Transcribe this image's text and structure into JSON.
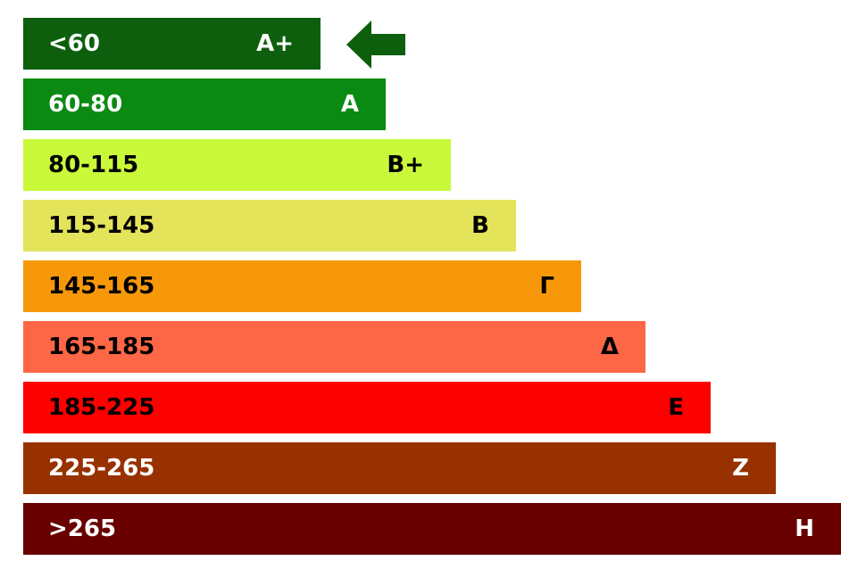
{
  "chart_data": {
    "type": "bar",
    "title": "",
    "xlabel": "",
    "ylabel": "",
    "categories": [
      "<60",
      "60-80",
      "80-115",
      "115-145",
      "145-165",
      "165-185",
      "185-225",
      "225-265",
      ">265"
    ],
    "classes": [
      "A+",
      "A",
      "B+",
      "B",
      "Γ",
      "Δ",
      "E",
      "Z",
      "H"
    ],
    "values": [
      1,
      2,
      3,
      4,
      5,
      6,
      7,
      8,
      9
    ],
    "colors": [
      "#0d5f0d",
      "#0a8a12",
      "#c9f93a",
      "#e3e45a",
      "#f7980a",
      "#fd6746",
      "#fd0000",
      "#983100",
      "#680000"
    ],
    "label_colors": [
      "#ffffff",
      "#ffffff",
      "#000000",
      "#000000",
      "#000000",
      "#000000",
      "#000000",
      "#ffffff",
      "#ffffff"
    ],
    "current_class": "A+",
    "arrow_color": "#0d5f0d",
    "ylim": [
      0,
      9
    ]
  }
}
